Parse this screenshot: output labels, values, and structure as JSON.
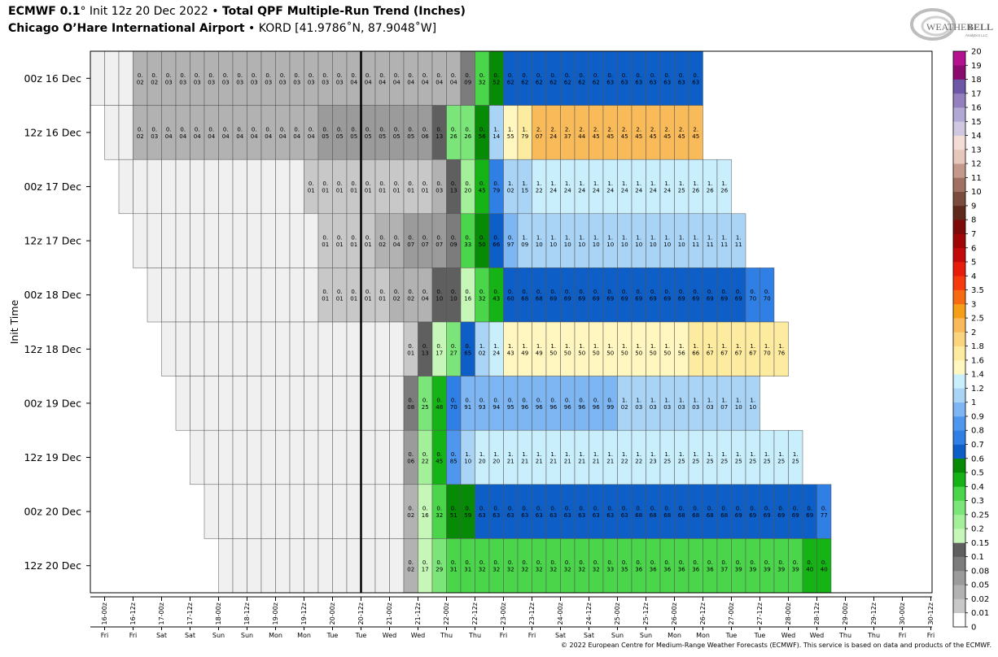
{
  "header": {
    "title_model": "ECMWF 0.1",
    "title_deg": "°",
    "title_init": " Init 12z 20 Dec 2022",
    "title_sep": " • ",
    "title_product": "Total QPF Multiple-Run Trend (Inches)",
    "subtitle_station": "Chicago O’Hare International Airport",
    "subtitle_sep": " • ",
    "subtitle_coords": "KORD [41.9786˚N, 87.9048˚W]"
  },
  "logo": {
    "line1": "Weather",
    "line2": "BELL",
    "line3": "Analytics LLC"
  },
  "footer": {
    "text": "© 2022 European Centre for Medium-Range Weather Forecasts (ECMWF). This service is based on data and products of the ECMWF."
  },
  "chart_data": {
    "type": "heatmap",
    "ylabel": "Init Time",
    "rows": [
      {
        "label": "00z 16 Dec",
        "start": 0,
        "values": [
          0,
          0,
          0,
          0.02,
          0.02,
          0.03,
          0.03,
          0.03,
          0.03,
          0.03,
          0.03,
          0.03,
          0.03,
          0.03,
          0.03,
          0.03,
          0.03,
          0.03,
          0.04,
          0.04,
          0.04,
          0.04,
          0.04,
          0.04,
          0.04,
          0.04,
          0.09,
          0.32,
          0.52,
          0.62,
          0.62,
          0.62,
          0.62,
          0.62,
          0.62,
          0.62,
          0.63,
          0.63,
          0.63,
          0.63,
          0.63,
          0.63,
          0.63
        ]
      },
      {
        "label": "12z 16 Dec",
        "start": 1,
        "values": [
          0,
          0,
          0.02,
          0.03,
          0.04,
          0.04,
          0.04,
          0.04,
          0.04,
          0.04,
          0.04,
          0.04,
          0.04,
          0.04,
          0.04,
          0.05,
          0.05,
          0.05,
          0.05,
          0.05,
          0.05,
          0.05,
          0.06,
          0.13,
          0.26,
          0.26,
          0.56,
          1.14,
          1.55,
          1.79,
          2.07,
          2.24,
          2.37,
          2.44,
          2.45,
          2.45,
          2.45,
          2.45,
          2.45,
          2.45,
          2.45,
          2.45
        ]
      },
      {
        "label": "00z 17 Dec",
        "start": 2,
        "values": [
          0,
          0,
          0,
          0,
          0,
          0,
          0,
          0,
          0,
          0,
          0,
          0,
          0,
          0.01,
          0.01,
          0.01,
          0.01,
          0.01,
          0.01,
          0.01,
          0.01,
          0.01,
          0.03,
          0.13,
          0.2,
          0.45,
          0.79,
          1.02,
          1.15,
          1.22,
          1.24,
          1.24,
          1.24,
          1.24,
          1.24,
          1.24,
          1.24,
          1.24,
          1.24,
          1.25,
          1.26,
          1.26,
          1.26
        ]
      },
      {
        "label": "12z 17 Dec",
        "start": 3,
        "values": [
          0,
          0,
          0,
          0,
          0,
          0,
          0,
          0,
          0,
          0,
          0,
          0,
          0,
          0.01,
          0.01,
          0.01,
          0.01,
          0.02,
          0.04,
          0.07,
          0.07,
          0.07,
          0.09,
          0.33,
          0.5,
          0.66,
          0.97,
          1.09,
          1.1,
          1.1,
          1.1,
          1.1,
          1.1,
          1.1,
          1.1,
          1.1,
          1.1,
          1.1,
          1.1,
          1.11,
          1.11,
          1.11,
          1.11
        ]
      },
      {
        "label": "00z 18 Dec",
        "start": 4,
        "values": [
          0,
          0,
          0,
          0,
          0,
          0,
          0,
          0,
          0,
          0,
          0,
          0,
          0.01,
          0.01,
          0.01,
          0.01,
          0.01,
          0.02,
          0.02,
          0.04,
          0.1,
          0.1,
          0.16,
          0.32,
          0.43,
          0.6,
          0.68,
          0.68,
          0.69,
          0.69,
          0.69,
          0.69,
          0.69,
          0.69,
          0.69,
          0.69,
          0.69,
          0.69,
          0.69,
          0.69,
          0.69,
          0.69,
          0.7,
          0.7
        ]
      },
      {
        "label": "12z 18 Dec",
        "start": 5,
        "values": [
          0,
          0,
          0,
          0,
          0,
          0,
          0,
          0,
          0,
          0,
          0,
          0,
          0,
          0,
          0,
          0,
          0,
          0.01,
          0.13,
          0.17,
          0.27,
          0.65,
          1.02,
          1.24,
          1.43,
          1.49,
          1.49,
          1.5,
          1.5,
          1.5,
          1.5,
          1.5,
          1.5,
          1.5,
          1.5,
          1.5,
          1.56,
          1.66,
          1.67,
          1.67,
          1.67,
          1.67,
          1.7,
          1.76
        ]
      },
      {
        "label": "00z 19 Dec",
        "start": 6,
        "values": [
          0,
          0,
          0,
          0,
          0,
          0,
          0,
          0,
          0,
          0,
          0,
          0,
          0,
          0,
          0,
          0,
          0.08,
          0.25,
          0.48,
          0.7,
          0.91,
          0.93,
          0.94,
          0.95,
          0.96,
          0.96,
          0.96,
          0.96,
          0.96,
          0.96,
          0.99,
          1.02,
          1.03,
          1.03,
          1.03,
          1.03,
          1.03,
          1.03,
          1.07,
          1.1,
          1.1
        ]
      },
      {
        "label": "12z 19 Dec",
        "start": 7,
        "values": [
          0,
          0,
          0,
          0,
          0,
          0,
          0,
          0,
          0,
          0,
          0,
          0,
          0,
          0,
          0,
          0.06,
          0.22,
          0.45,
          0.85,
          1.1,
          1.2,
          1.2,
          1.21,
          1.21,
          1.21,
          1.21,
          1.21,
          1.21,
          1.21,
          1.21,
          1.22,
          1.22,
          1.23,
          1.25,
          1.25,
          1.25,
          1.25,
          1.25,
          1.25,
          1.25,
          1.25,
          1.25,
          1.25
        ]
      },
      {
        "label": "00z 20 Dec",
        "start": 8,
        "values": [
          0,
          0,
          0,
          0,
          0,
          0,
          0,
          0,
          0,
          0,
          0,
          0,
          0,
          0,
          0.02,
          0.16,
          0.32,
          0.51,
          0.59,
          0.63,
          0.63,
          0.63,
          0.63,
          0.63,
          0.63,
          0.63,
          0.63,
          0.63,
          0.63,
          0.63,
          0.68,
          0.68,
          0.68,
          0.68,
          0.68,
          0.68,
          0.68,
          0.69,
          0.69,
          0.69,
          0.69,
          0.69,
          0.69,
          0.77
        ]
      },
      {
        "label": "12z 20 Dec",
        "start": 9,
        "values": [
          0,
          0,
          0,
          0,
          0,
          0,
          0,
          0,
          0,
          0,
          0,
          0,
          0,
          0.02,
          0.17,
          0.29,
          0.31,
          0.31,
          0.32,
          0.32,
          0.32,
          0.32,
          0.32,
          0.32,
          0.32,
          0.32,
          0.32,
          0.33,
          0.35,
          0.36,
          0.36,
          0.36,
          0.36,
          0.36,
          0.36,
          0.37,
          0.39,
          0.39,
          0.39,
          0.39,
          0.39,
          0.4,
          0.4
        ]
      }
    ],
    "x_ticks": [
      {
        "label": "16-00z",
        "day": "Fri"
      },
      {
        "label": "16-12z",
        "day": "Fri"
      },
      {
        "label": "17-00z",
        "day": "Sat"
      },
      {
        "label": "17-12z",
        "day": "Sat"
      },
      {
        "label": "18-00z",
        "day": "Sun"
      },
      {
        "label": "18-12z",
        "day": "Sun"
      },
      {
        "label": "19-00z",
        "day": "Mon"
      },
      {
        "label": "19-12z",
        "day": "Mon"
      },
      {
        "label": "20-00z",
        "day": "Tue"
      },
      {
        "label": "20-12z",
        "day": "Tue"
      },
      {
        "label": "21-00z",
        "day": "Wed"
      },
      {
        "label": "21-12z",
        "day": "Wed"
      },
      {
        "label": "22-00z",
        "day": "Thu"
      },
      {
        "label": "22-12z",
        "day": "Thu"
      },
      {
        "label": "23-00z",
        "day": "Fri"
      },
      {
        "label": "23-12z",
        "day": "Fri"
      },
      {
        "label": "24-00z",
        "day": "Sat"
      },
      {
        "label": "24-12z",
        "day": "Sat"
      },
      {
        "label": "25-00z",
        "day": "Sun"
      },
      {
        "label": "25-12z",
        "day": "Sun"
      },
      {
        "label": "26-00z",
        "day": "Mon"
      },
      {
        "label": "26-12z",
        "day": "Mon"
      },
      {
        "label": "27-00z",
        "day": "Tue"
      },
      {
        "label": "27-12z",
        "day": "Tue"
      },
      {
        "label": "28-00z",
        "day": "Wed"
      },
      {
        "label": "28-12z",
        "day": "Wed"
      },
      {
        "label": "29-00z",
        "day": "Thu"
      },
      {
        "label": "29-12z",
        "day": "Thu"
      },
      {
        "label": "30-00z",
        "day": "Fri"
      },
      {
        "label": "30-12z",
        "day": "Fri"
      }
    ],
    "current_init": "20-12z",
    "colorbar": {
      "labels": [
        "0",
        "0.01",
        "0.02",
        "0.05",
        "0.08",
        "0.1",
        "0.15",
        "0.2",
        "0.25",
        "0.3",
        "0.4",
        "0.5",
        "0.6",
        "0.7",
        "0.8",
        "0.9",
        "1",
        "1.2",
        "1.4",
        "1.6",
        "1.8",
        "2",
        "2.5",
        "3",
        "3.5",
        "4",
        "5",
        "6",
        "7",
        "8",
        "9",
        "10",
        "11",
        "12",
        "13",
        "14",
        "15",
        "16",
        "17",
        "18",
        "19",
        "20"
      ],
      "colors": [
        "#ffffff",
        "#c8c8c8",
        "#b2b2b2",
        "#9b9b9b",
        "#7c7c7c",
        "#5f5f5f",
        "#c6f7b8",
        "#a4f09a",
        "#7ce57a",
        "#4ad54a",
        "#16b316",
        "#078b07",
        "#0d5fc7",
        "#2f7fe5",
        "#4f97ee",
        "#7db6f2",
        "#aad4f6",
        "#c9eefc",
        "#fff6c0",
        "#fdeba0",
        "#fbd47f",
        "#f9bb5a",
        "#f79e18",
        "#f76a12",
        "#f53a0c",
        "#e81c0a",
        "#c30a0a",
        "#a10505",
        "#7e0909",
        "#5f2a1c",
        "#7b4d3f",
        "#a07062",
        "#c4988a",
        "#e6c7bc",
        "#f4ddd4",
        "#cfc8e0",
        "#b2a8d4",
        "#9480be",
        "#6c58a6",
        "#8a0a6e",
        "#b3118e",
        "#d416b0",
        "#f018cf"
      ]
    }
  }
}
